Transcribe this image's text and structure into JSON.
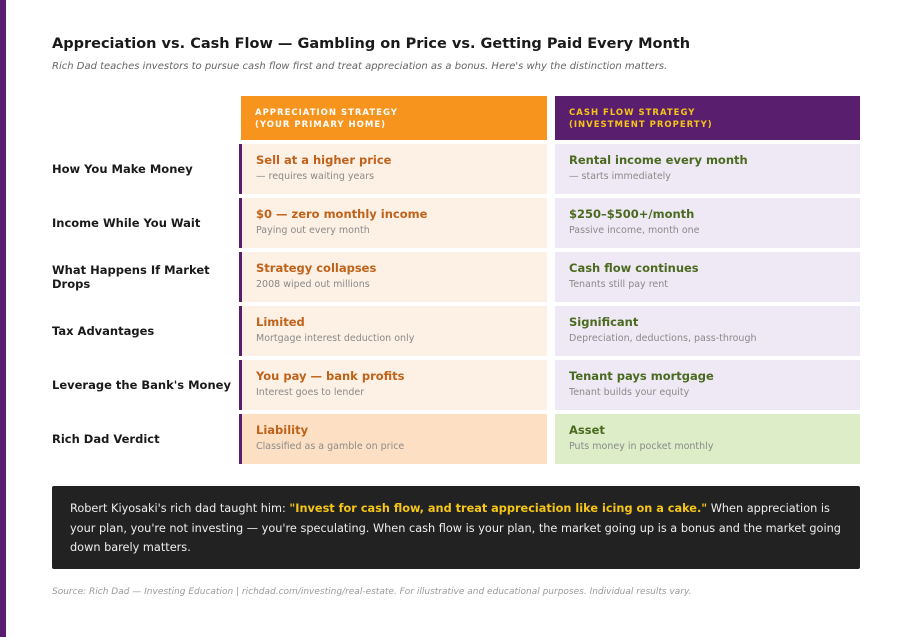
{
  "header": {
    "title": "Appreciation vs. Cash Flow — Gambling on Price vs. Getting Paid Every Month",
    "subtitle": "Rich Dad teaches investors to pursue cash flow first and treat appreciation as a bonus. Here's why the distinction matters."
  },
  "table": {
    "columns": [
      {
        "lines": [
          "APPRECIATION STRATEGY",
          "(YOUR PRIMARY HOME)"
        ]
      },
      {
        "lines": [
          "CASH FLOW STRATEGY",
          "(INVESTMENT PROPERTY)"
        ]
      }
    ],
    "rows": [
      {
        "label": "How You Make Money",
        "appreciation": {
          "main": "Sell at a higher price",
          "sub": "— requires waiting years"
        },
        "cash_flow": {
          "main": "Rental income every month",
          "sub": "— starts immediately"
        }
      },
      {
        "label": "Income While You Wait",
        "appreciation": {
          "main": "$0 — zero monthly income",
          "sub": "Paying out every month"
        },
        "cash_flow": {
          "main": "$250–$500+/month",
          "sub": "Passive income, month one"
        }
      },
      {
        "label": "What Happens If Market Drops",
        "appreciation": {
          "main": "Strategy collapses",
          "sub": "2008 wiped out millions"
        },
        "cash_flow": {
          "main": "Cash flow continues",
          "sub": "Tenants still pay rent"
        }
      },
      {
        "label": "Tax Advantages",
        "appreciation": {
          "main": "Limited",
          "sub": "Mortgage interest deduction only"
        },
        "cash_flow": {
          "main": "Significant",
          "sub": "Depreciation, deductions, pass-through"
        }
      },
      {
        "label": "Leverage the Bank's Money",
        "appreciation": {
          "main": "You pay — bank profits",
          "sub": "Interest goes to lender"
        },
        "cash_flow": {
          "main": "Tenant pays mortgage",
          "sub": "Tenant builds your equity"
        }
      },
      {
        "label": "Rich Dad Verdict",
        "appreciation": {
          "main": "Liability",
          "sub": "Classified as a gamble on price"
        },
        "cash_flow": {
          "main": "Asset",
          "sub": "Puts money in pocket monthly"
        }
      }
    ]
  },
  "quote": {
    "before": "Robert Kiyosaki's rich dad taught him: ",
    "highlight": "\"Invest for cash flow, and treat appreciation like icing on a cake.\"",
    "after": " When appreciation is your plan, you're not investing — you're speculating. When cash flow is your plan, the market going up is a bonus and the market going down barely matters."
  },
  "source": "Source: Rich Dad — Investing Education | richdad.com/investing/real-estate. For illustrative and educational purposes. Individual results vary."
}
